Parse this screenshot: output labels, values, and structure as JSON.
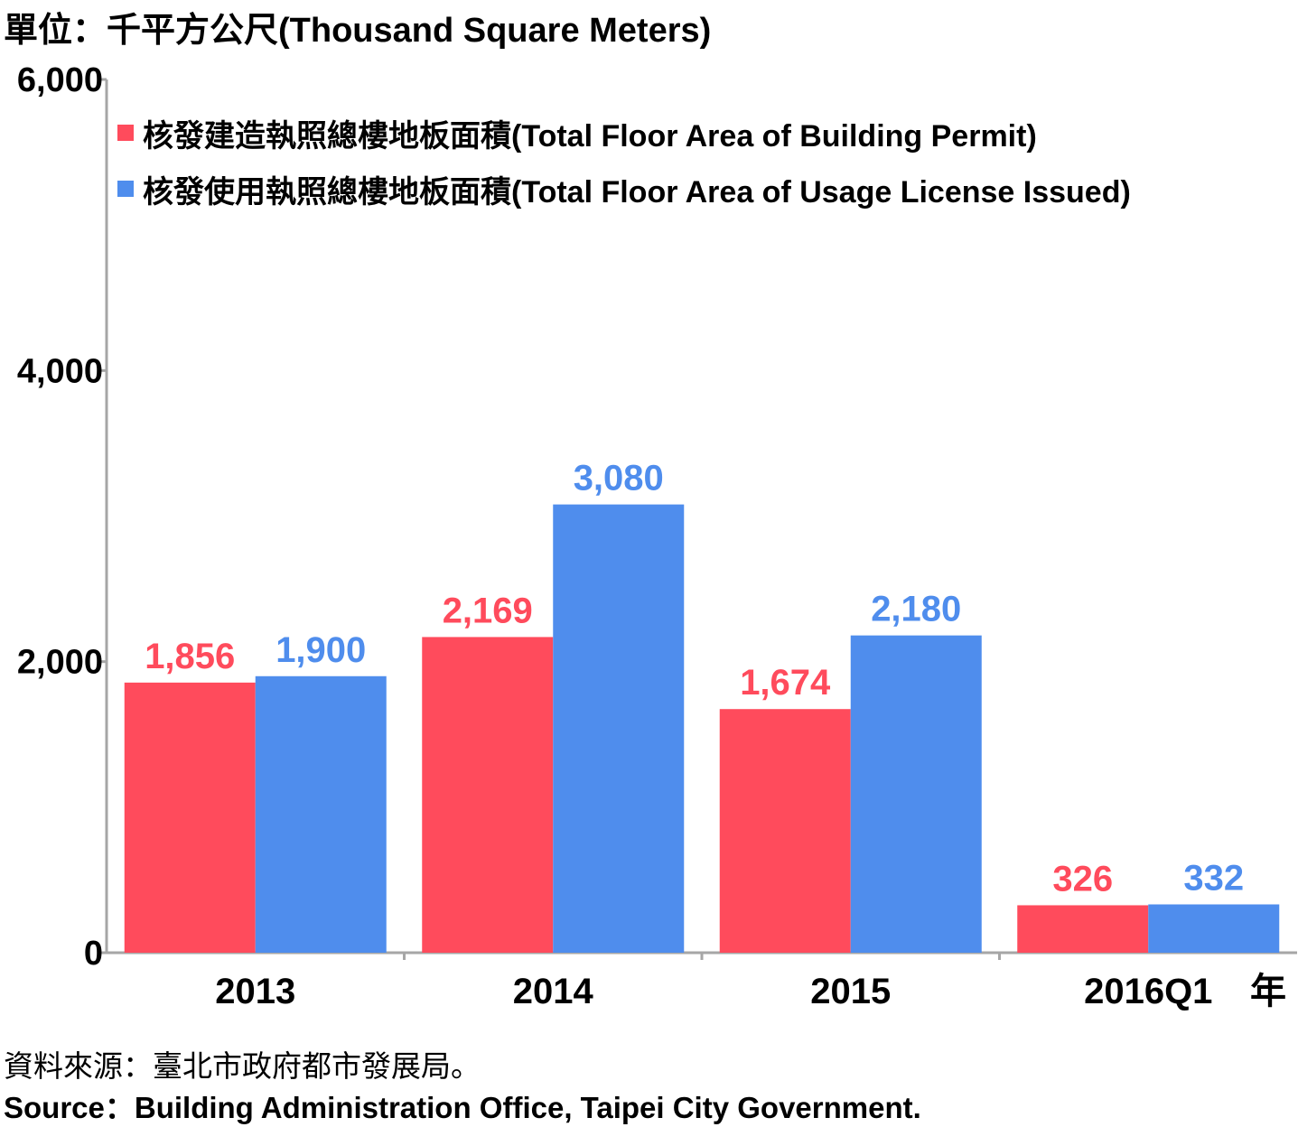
{
  "unit_label": "單位：千平方公尺(Thousand Square Meters)",
  "x_unit": "年",
  "source": {
    "zh": "資料來源：臺北市政府都市發展局。",
    "en": "Source：Building Administration Office, Taipei City Government."
  },
  "colors": {
    "building_permit": "#ff4b5c",
    "usage_license": "#4f8ded",
    "axis": "#a6a6a6"
  },
  "legend": [
    {
      "label": "核發建造執照總樓地板面積(Total Floor Area of Building Permit)",
      "color": "#ff4b5c"
    },
    {
      "label": "核發使用執照總樓地板面積(Total Floor Area of Usage License Issued)",
      "color": "#4f8ded"
    }
  ],
  "chart_data": {
    "type": "bar",
    "categories": [
      "2013",
      "2014",
      "2015",
      "2016Q1"
    ],
    "series": [
      {
        "name": "核發建造執照總樓地板面積(Total Floor Area of Building Permit)",
        "values": [
          1856,
          2169,
          1674,
          326
        ],
        "labels": [
          "1,856",
          "2,169",
          "1,674",
          "326"
        ],
        "color": "#ff4b5c"
      },
      {
        "name": "核發使用執照總樓地板面積(Total Floor Area of Usage License Issued)",
        "values": [
          1900,
          3080,
          2180,
          332
        ],
        "labels": [
          "1,900",
          "3,080",
          "2,180",
          "332"
        ],
        "color": "#4f8ded"
      }
    ],
    "ylim": [
      0,
      6000
    ],
    "yticks": [
      0,
      2000,
      4000,
      6000
    ],
    "ytick_labels": [
      "0",
      "2,000",
      "4,000",
      "6,000"
    ],
    "legend_position": "top-left",
    "grid": false
  }
}
